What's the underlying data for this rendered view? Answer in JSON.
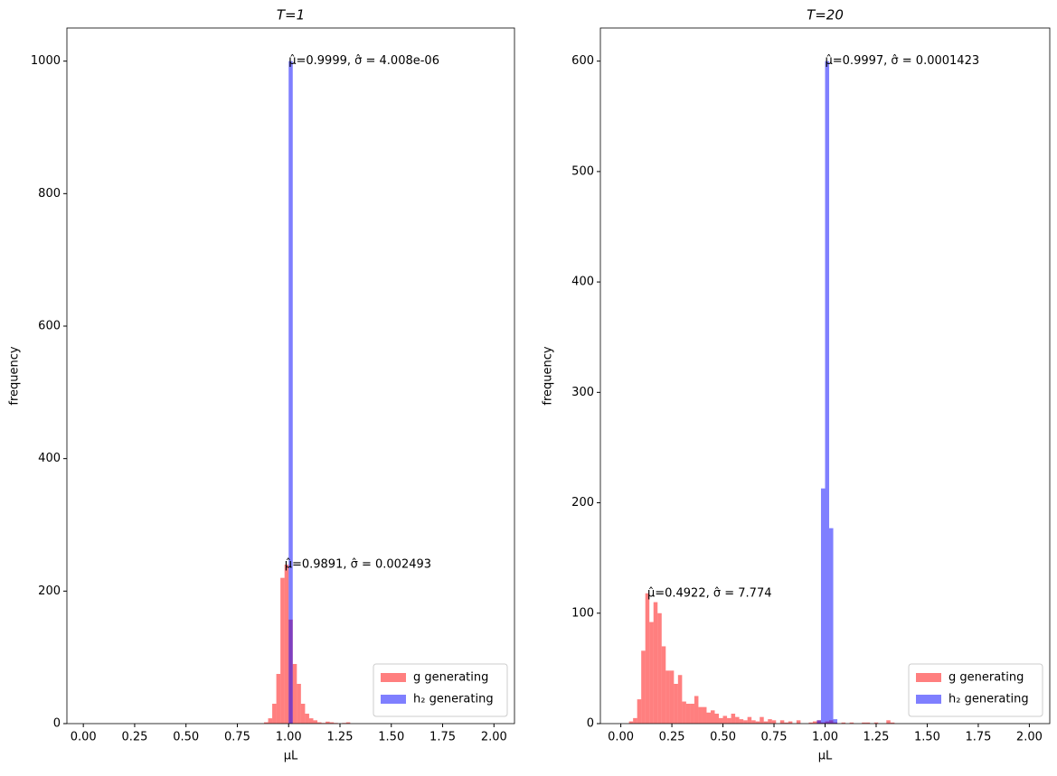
{
  "chart_data": [
    {
      "type": "histogram",
      "title": "T=1",
      "xlabel": "μL",
      "ylabel": "frequency",
      "xlim": [
        -0.08,
        2.1
      ],
      "ylim": [
        0,
        1050
      ],
      "xticks": [
        {
          "value": 0,
          "label": "0.00"
        },
        {
          "value": 0.25,
          "label": "0.25"
        },
        {
          "value": 0.5,
          "label": "0.50"
        },
        {
          "value": 0.75,
          "label": "0.75"
        },
        {
          "value": 1,
          "label": "1.00"
        },
        {
          "value": 1.25,
          "label": "1.25"
        },
        {
          "value": 1.5,
          "label": "1.50"
        },
        {
          "value": 1.75,
          "label": "1.75"
        },
        {
          "value": 2,
          "label": "2.00"
        }
      ],
      "yticks": [
        0,
        200,
        400,
        600,
        800,
        1000
      ],
      "alpha": 0.5,
      "legend": "lower right",
      "series": [
        {
          "name": "g generating",
          "color": "#ff0000",
          "bins": [
            0.88,
            0.9,
            0.92,
            0.94,
            0.96,
            0.98,
            1.0,
            1.02,
            1.04,
            1.06,
            1.08,
            1.1,
            1.12,
            1.14,
            1.16,
            1.18,
            1.2,
            1.22,
            1.24,
            1.26,
            1.28,
            1.3
          ],
          "values": [
            2,
            8,
            30,
            75,
            220,
            240,
            157,
            90,
            60,
            30,
            15,
            8,
            5,
            2,
            1,
            3,
            2,
            1,
            0,
            1,
            2
          ]
        },
        {
          "name": "h₂ generating",
          "color": "#0000ff",
          "bins": [
            1.0,
            1.02
          ],
          "values": [
            1000
          ]
        }
      ],
      "annotations": [
        {
          "text": "μ̂=0.9999, σ̂ = 4.008e-06",
          "x": 1.0,
          "y": 1000
        },
        {
          "text": "μ̂=0.9891, σ̂ = 0.002493",
          "x": 0.98,
          "y": 240
        }
      ]
    },
    {
      "type": "histogram",
      "title": "T=20",
      "xlabel": "μL",
      "ylabel": "frequency",
      "xlim": [
        -0.1,
        2.1
      ],
      "ylim": [
        0,
        630
      ],
      "xticks": [
        {
          "value": 0,
          "label": "0.00"
        },
        {
          "value": 0.25,
          "label": "0.25"
        },
        {
          "value": 0.5,
          "label": "0.50"
        },
        {
          "value": 0.75,
          "label": "0.75"
        },
        {
          "value": 1,
          "label": "1.00"
        },
        {
          "value": 1.25,
          "label": "1.25"
        },
        {
          "value": 1.5,
          "label": "1.50"
        },
        {
          "value": 1.75,
          "label": "1.75"
        },
        {
          "value": 2,
          "label": "2.00"
        }
      ],
      "yticks": [
        0,
        100,
        200,
        300,
        400,
        500,
        600
      ],
      "alpha": 0.5,
      "legend": "lower right",
      "series": [
        {
          "name": "g generating",
          "color": "#ff0000",
          "bins": [
            0.04,
            0.06,
            0.08,
            0.1,
            0.12,
            0.14,
            0.16,
            0.18,
            0.2,
            0.22,
            0.24,
            0.26,
            0.28,
            0.3,
            0.32,
            0.34,
            0.36,
            0.38,
            0.4,
            0.42,
            0.44,
            0.46,
            0.48,
            0.5,
            0.52,
            0.54,
            0.56,
            0.58,
            0.6,
            0.62,
            0.64,
            0.66,
            0.68,
            0.7,
            0.72,
            0.74,
            0.76,
            0.78,
            0.8,
            0.82,
            0.84,
            0.86,
            0.88,
            0.9,
            0.92,
            0.94,
            0.96,
            0.98,
            1.0,
            1.02,
            1.04,
            1.06,
            1.08,
            1.1,
            1.12,
            1.14,
            1.16,
            1.18,
            1.2,
            1.22,
            1.24,
            1.26,
            1.28,
            1.3,
            1.32,
            1.34
          ],
          "values": [
            2,
            5,
            22,
            66,
            118,
            92,
            110,
            100,
            70,
            48,
            48,
            36,
            44,
            20,
            18,
            18,
            25,
            15,
            15,
            10,
            12,
            9,
            5,
            7,
            5,
            9,
            6,
            4,
            3,
            6,
            3,
            2,
            6,
            2,
            4,
            3,
            0,
            3,
            1,
            2,
            0,
            3,
            0,
            0,
            1,
            2,
            3,
            1,
            2,
            3,
            1,
            0,
            1,
            0,
            1,
            0,
            0,
            1,
            1,
            0,
            1,
            0,
            0,
            3,
            1
          ]
        },
        {
          "name": "h₂ generating",
          "color": "#0000ff",
          "bins": [
            0.96,
            0.98,
            1.0,
            1.02,
            1.04,
            1.06
          ],
          "values": [
            3,
            213,
            600,
            177,
            4
          ]
        }
      ],
      "annotations": [
        {
          "text": "μ̂=0.9997, σ̂ = 0.0001423",
          "x": 1.0,
          "y": 600
        },
        {
          "text": "μ̂=0.4922, σ̂ = 7.774",
          "x": 0.13,
          "y": 118
        }
      ]
    }
  ]
}
